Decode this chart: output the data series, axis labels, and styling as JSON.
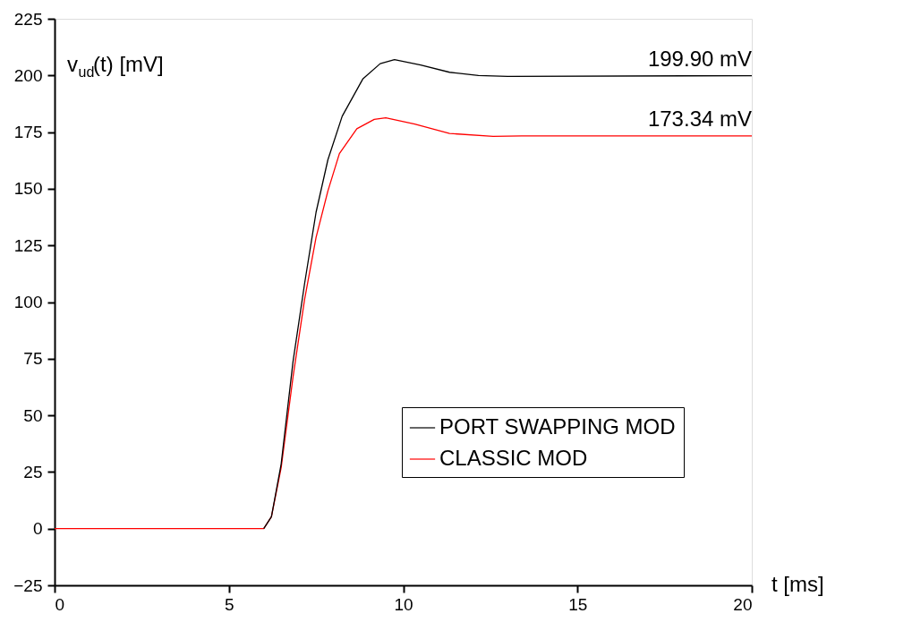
{
  "chart_data": {
    "type": "line",
    "xlabel": "t   [ms]",
    "ylabel": "v$_{ud}$(t)   [mV]",
    "xlim": [
      0,
      20
    ],
    "xticks": [
      0,
      5,
      10,
      15,
      20
    ],
    "ylim": [
      -25,
      225
    ],
    "yticks": [
      -25,
      0,
      25,
      50,
      75,
      100,
      125,
      150,
      175,
      200,
      225
    ],
    "grid": false,
    "legend": "bottom right",
    "line_style": "solid",
    "marker": "none",
    "series": [
      {
        "name": "PORT SWAPPING MOD",
        "color": "#000000",
        "x": [
          6.0,
          6.22,
          6.5,
          6.84,
          7.17,
          7.5,
          7.84,
          8.25,
          8.84,
          9.34,
          9.75,
          10.5,
          11.33,
          12.16,
          13.0,
          20
        ],
        "values": [
          0,
          5.3,
          28.6,
          73.8,
          108,
          139.6,
          162.8,
          182,
          198.4,
          205.2,
          207,
          204.6,
          201.4,
          200,
          199.6,
          199.9
        ]
      },
      {
        "name": "CLASSIC MOD",
        "color": "#ff0000",
        "x": [
          0,
          6.0,
          6.22,
          6.5,
          6.84,
          7.17,
          7.5,
          7.84,
          8.17,
          8.67,
          9.17,
          9.5,
          10.33,
          11.33,
          12.58,
          13.4,
          20
        ],
        "values": [
          0,
          0,
          5.3,
          27,
          67,
          101,
          128.5,
          149,
          165.5,
          176.5,
          180.6,
          181.3,
          178.5,
          174.4,
          173.1,
          173.3,
          173.34
        ]
      }
    ],
    "annotations": [
      {
        "text": "199.90 mV",
        "x": 20,
        "y": 199.9
      },
      {
        "text": "173.34 mV",
        "x": 20,
        "y": 173.34
      }
    ]
  }
}
